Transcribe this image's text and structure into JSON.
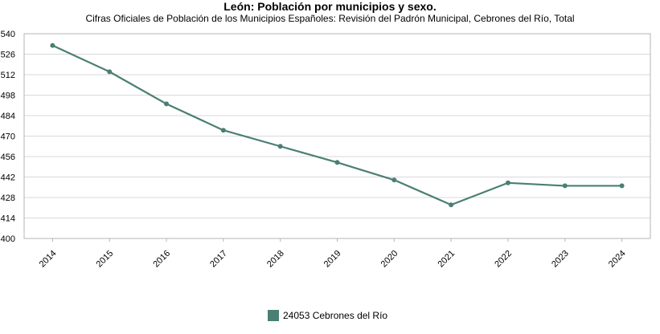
{
  "chart_data": {
    "type": "line",
    "title": "León: Población por municipios y sexo.",
    "subtitle": "Cifras Oficiales de Población de los Municipios Españoles: Revisión del Padrón Municipal, Cebrones del Río, Total",
    "categories": [
      "2014",
      "2015",
      "2016",
      "2017",
      "2018",
      "2019",
      "2020",
      "2021",
      "2022",
      "2023",
      "2024"
    ],
    "series": [
      {
        "name": "24053 Cebrones del Río",
        "values": [
          532,
          514,
          492,
          474,
          463,
          452,
          440,
          423,
          438,
          436,
          436
        ],
        "color": "#4a7f74"
      }
    ],
    "yticks": [
      400,
      414,
      428,
      442,
      456,
      470,
      484,
      498,
      512,
      526,
      540
    ],
    "ylim": [
      400,
      540
    ],
    "grid": true,
    "legend_position": "bottom"
  }
}
